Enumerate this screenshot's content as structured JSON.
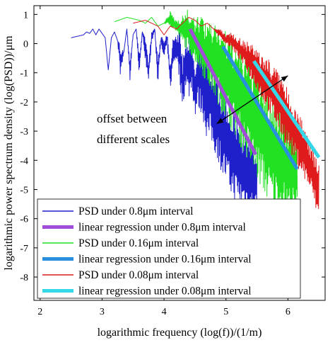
{
  "chart_data": {
    "type": "line",
    "title": "",
    "xlabel": "logarithmic frequency (log(f))/(1/m)",
    "ylabel": "logarithmic power spectrum density (log(PSD))/μm",
    "xlim": [
      1.9,
      6.6
    ],
    "ylim": [
      -8.8,
      1.3
    ],
    "xticks": [
      2,
      3,
      4,
      5,
      6
    ],
    "yticks": [
      1,
      0,
      -1,
      -2,
      -3,
      -4,
      -5,
      -6,
      -7,
      -8
    ],
    "grid": false,
    "legend_position": "bottom-left",
    "annotation": {
      "lines": [
        "offset between",
        "different scales"
      ],
      "arrow_from": [
        4.85,
        -2.75
      ],
      "arrow_to": [
        6.0,
        -1.1
      ]
    },
    "series": [
      {
        "name": "PSD under 0.8μm interval",
        "color": "#1f1fcc",
        "kind": "psd",
        "x": [
          2.5,
          2.6,
          2.7,
          2.75,
          2.8,
          2.85,
          2.9,
          2.95,
          3.0,
          3.05,
          3.1,
          3.15,
          3.2,
          3.25,
          3.3,
          3.35,
          3.4,
          3.45,
          3.5,
          3.55,
          3.6,
          3.65,
          3.7,
          3.75,
          3.8,
          3.85,
          3.9,
          3.95,
          4.0,
          4.05,
          4.1,
          4.15,
          4.2,
          4.25,
          4.3,
          4.35,
          4.4,
          4.45,
          4.5,
          4.55,
          4.6,
          4.65,
          4.7,
          4.75,
          4.8,
          4.85,
          4.9,
          4.95,
          5.0,
          5.05,
          5.1,
          5.15,
          5.2,
          5.25,
          5.3,
          5.35,
          5.4,
          5.45,
          5.5
        ],
        "upper": [
          0.2,
          0.25,
          0.3,
          0.4,
          0.35,
          0.5,
          0.3,
          0.5,
          0.35,
          0.2,
          -0.9,
          0.2,
          0.4,
          0.1,
          0.0,
          -0.3,
          0.5,
          -0.5,
          0.3,
          0.5,
          -0.3,
          0.4,
          0.2,
          -0.6,
          0.4,
          0.5,
          -0.5,
          0.3,
          0.2,
          0.4,
          -0.7,
          0.5,
          0.3,
          0.6,
          -0.5,
          0.4,
          0.2,
          0.5,
          -0.6,
          0.3,
          0.1,
          -0.2,
          -0.4,
          -0.6,
          -0.9,
          -1.1,
          -1.3,
          -1.5,
          -1.7,
          -1.9,
          -2.1,
          -2.3,
          -2.5,
          -2.8,
          -3.0,
          -3.2,
          -3.4,
          -3.5,
          -3.6
        ],
        "lower": [
          0.2,
          0.25,
          0.3,
          0.4,
          0.35,
          0.5,
          0.3,
          0.5,
          0.35,
          0.2,
          -0.9,
          0.2,
          0.4,
          0.1,
          -1.2,
          -0.3,
          0.5,
          -1.3,
          0.3,
          0.5,
          -1.2,
          0.4,
          -0.6,
          -1.3,
          0.0,
          0.5,
          -1.4,
          0.0,
          -0.6,
          0.0,
          -1.6,
          -0.8,
          -0.5,
          -1.3,
          -2.2,
          -1.5,
          -1.9,
          -1.6,
          -2.5,
          -2.3,
          -2.4,
          -2.8,
          -3.4,
          -3.3,
          -3.7,
          -3.9,
          -4.2,
          -4.6,
          -4.8,
          -5.1,
          -5.3,
          -5.4,
          -5.5,
          -5.6,
          -5.6,
          -5.7,
          -5.8,
          -5.8,
          -5.9
        ]
      },
      {
        "name": "linear regression under 0.8μm interval",
        "color": "#a04dd8",
        "kind": "regression",
        "x": [
          4.42,
          5.48
        ],
        "y": [
          0.5,
          -3.8
        ]
      },
      {
        "name": "PSD under 0.16μm interval",
        "color": "#22e022",
        "kind": "psd",
        "x": [
          3.2,
          3.4,
          3.6,
          3.7,
          3.8,
          3.9,
          4.0,
          4.1,
          4.2,
          4.3,
          4.4,
          4.5,
          4.6,
          4.7,
          4.8,
          4.9,
          5.0,
          5.1,
          5.2,
          5.3,
          5.4,
          5.5,
          5.6,
          5.7,
          5.8,
          5.9,
          6.0,
          6.1,
          6.15
        ],
        "upper": [
          0.75,
          0.9,
          0.8,
          0.7,
          0.9,
          0.6,
          0.7,
          1.1,
          0.8,
          1.0,
          1.2,
          0.8,
          1.1,
          0.6,
          0.9,
          0.8,
          0.4,
          0.3,
          0.0,
          -0.2,
          -0.4,
          -0.8,
          -1.2,
          -1.6,
          -1.9,
          -2.2,
          -2.5,
          -2.7,
          -2.8
        ],
        "lower": [
          0.75,
          0.9,
          0.8,
          0.7,
          0.9,
          0.6,
          0.7,
          0.6,
          0.4,
          0.0,
          -0.3,
          -0.6,
          -1.0,
          -1.4,
          -1.8,
          -2.2,
          -2.6,
          -3.0,
          -3.4,
          -3.8,
          -4.3,
          -4.7,
          -5.1,
          -5.5,
          -5.7,
          -5.9,
          -6.0,
          -6.1,
          -6.1
        ]
      },
      {
        "name": "linear regression under 0.16μm interval",
        "color": "#2b8fe0",
        "kind": "regression",
        "x": [
          4.95,
          6.15
        ],
        "y": [
          -0.1,
          -4.3
        ]
      },
      {
        "name": "PSD under 0.08μm interval",
        "color": "#e01b1b",
        "kind": "psd",
        "x": [
          3.5,
          3.7,
          3.9,
          4.0,
          4.1,
          4.2,
          4.3,
          4.4,
          4.5,
          4.6,
          4.7,
          4.8,
          4.9,
          5.0,
          5.1,
          5.2,
          5.3,
          5.4,
          5.5,
          5.6,
          5.7,
          5.8,
          5.9,
          6.0,
          6.1,
          6.2,
          6.3,
          6.4,
          6.5
        ],
        "upper": [
          0.7,
          0.8,
          0.6,
          0.3,
          0.6,
          0.5,
          0.7,
          0.9,
          0.8,
          0.6,
          0.7,
          0.5,
          0.5,
          0.3,
          0.4,
          0.2,
          0.1,
          0.0,
          -0.2,
          -0.4,
          -0.5,
          -0.8,
          -1.1,
          -1.6,
          -2.0,
          -2.5,
          -3.0,
          -3.5,
          -3.9
        ],
        "lower": [
          0.7,
          0.8,
          0.6,
          0.3,
          0.6,
          0.5,
          0.7,
          0.9,
          0.8,
          0.6,
          0.7,
          0.5,
          0.2,
          0.0,
          -0.2,
          -0.5,
          -0.8,
          -1.2,
          -1.6,
          -2.0,
          -2.4,
          -2.8,
          -3.2,
          -3.6,
          -4.0,
          -4.4,
          -4.8,
          -5.3,
          -6.2
        ]
      },
      {
        "name": "linear regression under 0.08μm interval",
        "color": "#35d8e8",
        "kind": "regression",
        "x": [
          5.45,
          6.5
        ],
        "y": [
          -0.6,
          -3.9
        ]
      }
    ]
  }
}
